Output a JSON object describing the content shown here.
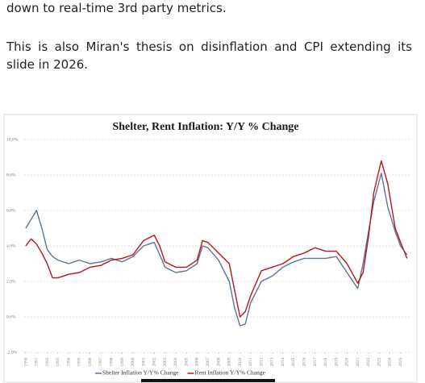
{
  "text": [
    "down to real-time 3rd party metrics.",
    "This is also Miran's thesis on disinflation and CPI extending its",
    "slide in 2026."
  ],
  "chart_data": {
    "type": "line",
    "title": "Shelter, Rent Inflation: Y/Y % Change",
    "x": [
      1990,
      1990.5,
      1991,
      1991.5,
      1992,
      1992.5,
      1993,
      1994,
      1995,
      1996,
      1997,
      1998,
      1999,
      2000,
      2001,
      2002,
      2002.5,
      2003,
      2004,
      2005,
      2006,
      2006.5,
      2007,
      2008,
      2009,
      2009.5,
      2010,
      2010.5,
      2011,
      2012,
      2013,
      2014,
      2015,
      2016,
      2017,
      2018,
      2019,
      2020,
      2021,
      2021.5,
      2022,
      2022.5,
      2023.2,
      2023.8,
      2024.5,
      2025,
      2025.6
    ],
    "series": [
      {
        "name": "Shelter Inflation Y/Y% Change",
        "color": "#5d7592",
        "values": [
          5.0,
          5.5,
          6.0,
          5.0,
          3.8,
          3.4,
          3.2,
          3.0,
          3.2,
          3.0,
          3.1,
          3.3,
          3.1,
          3.4,
          4.0,
          4.2,
          3.5,
          2.8,
          2.5,
          2.6,
          3.0,
          4.0,
          3.9,
          3.2,
          2.0,
          0.5,
          -0.5,
          -0.4,
          0.8,
          2.0,
          2.3,
          2.8,
          3.1,
          3.3,
          3.3,
          3.3,
          3.4,
          2.5,
          1.6,
          3.0,
          4.8,
          6.5,
          8.1,
          6.2,
          4.8,
          4.0,
          3.5
        ]
      },
      {
        "name": "Rent Inflation Y/Y% Change",
        "color": "#b8161c",
        "values": [
          4.0,
          4.4,
          4.1,
          3.6,
          3.0,
          2.2,
          2.2,
          2.4,
          2.5,
          2.8,
          2.9,
          3.2,
          3.3,
          3.5,
          4.3,
          4.6,
          4.0,
          3.1,
          2.8,
          2.8,
          3.2,
          4.3,
          4.2,
          3.6,
          3.0,
          1.5,
          0.0,
          0.3,
          1.2,
          2.6,
          2.8,
          3.0,
          3.4,
          3.6,
          3.9,
          3.7,
          3.7,
          3.0,
          1.9,
          2.5,
          4.5,
          7.0,
          8.8,
          7.5,
          5.0,
          4.2,
          3.3
        ]
      }
    ],
    "xlim": [
      1989.85,
      2026
    ],
    "xticks": [
      1990,
      1991,
      1992,
      1993,
      1994,
      1995,
      1996,
      1997,
      1998,
      1999,
      2000,
      2001,
      2002,
      2003,
      2004,
      2005,
      2006,
      2007,
      2008,
      2009,
      2010,
      2011,
      2012,
      2013,
      2014,
      2015,
      2016,
      2017,
      2018,
      2019,
      2020,
      2021,
      2022,
      2023,
      2024,
      2025
    ],
    "ylim": [
      -2,
      10
    ],
    "yticks": [
      {
        "value": -2,
        "label": "-2.0%"
      },
      {
        "value": 0,
        "label": "0.0%"
      },
      {
        "value": 2,
        "label": "2.0%"
      },
      {
        "value": 4,
        "label": "4.0%"
      },
      {
        "value": 6,
        "label": "6.0%"
      },
      {
        "value": 8,
        "label": "8.0%"
      },
      {
        "value": 10,
        "label": "10.0%"
      }
    ],
    "grid": true,
    "legend": "bottom"
  }
}
